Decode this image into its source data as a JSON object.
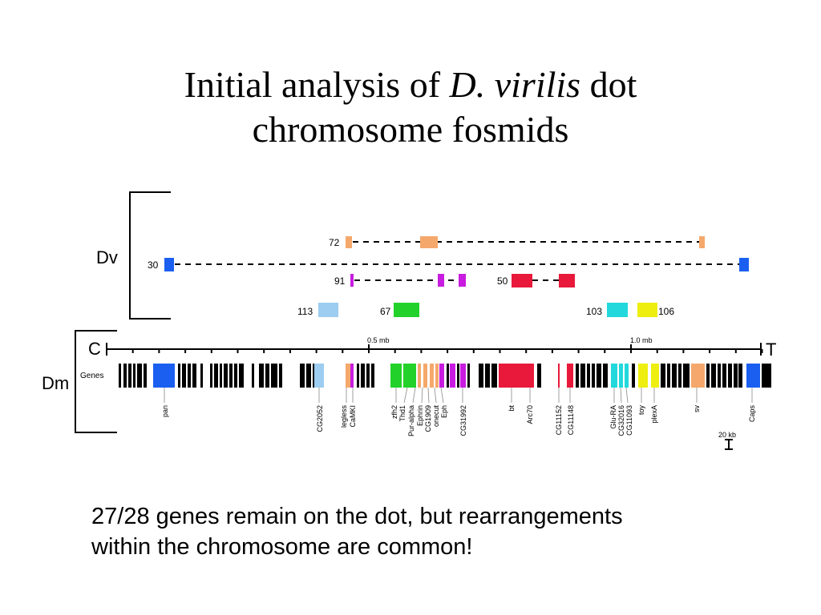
{
  "title": {
    "line1_before": "Initial analysis of ",
    "line1_italic": "D. virilis",
    "line1_after": " dot",
    "line2": "chromosome fosmids"
  },
  "caption": {
    "line1": "27/28 genes remain on the dot, but rearrangements",
    "line2": "within the chromosome are common!"
  },
  "diagram": {
    "dv_label": "Dv",
    "dm_label": "Dm",
    "centromere_label": "C",
    "telomere_label": "T",
    "genes_row_label": "Genes",
    "scale_ticks": [
      {
        "label": "0.5 mb"
      },
      {
        "label": "1.0 mb"
      }
    ],
    "scale_bar_label": "20 kb",
    "colors": {
      "orange": "#f5a86b",
      "blue": "#1a5ff0",
      "purple": "#c81ce0",
      "red": "#e8193a",
      "light_blue": "#9dcdf0",
      "green": "#22d22a",
      "cyan": "#22d8dc",
      "yellow": "#eeee10",
      "black": "#000000"
    },
    "fosmids": [
      {
        "id": "72",
        "color": "orange"
      },
      {
        "id": "30",
        "color": "blue"
      },
      {
        "id": "91",
        "color": "purple"
      },
      {
        "id": "50",
        "color": "red"
      },
      {
        "id": "113",
        "color": "light_blue"
      },
      {
        "id": "67",
        "color": "green"
      },
      {
        "id": "103",
        "color": "cyan"
      },
      {
        "id": "106",
        "color": "yellow"
      }
    ],
    "gene_labels": [
      "pan",
      "CG2052",
      "legless",
      "CaMKI",
      "zfh2",
      "Thd1",
      "Pur-alpha",
      "Ephrin",
      "CG1909",
      "onecut",
      "Eph",
      "CG31992",
      "bt",
      "Arc70",
      "CG11152",
      "CG11148",
      "Glu-RA",
      "CG32016",
      "CG11093",
      "toy",
      "plexA",
      "sv",
      "Caps"
    ]
  }
}
